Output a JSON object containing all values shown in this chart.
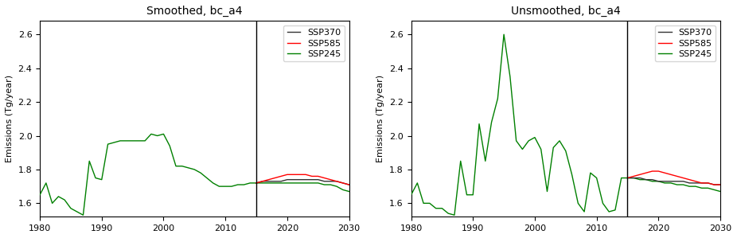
{
  "title_smoothed": "Smoothed, bc_a4",
  "title_unsmoothed": "Unsmoothed, bc_a4",
  "ylabel": "Emissions (Tg/year)",
  "xlim": [
    1980,
    2030
  ],
  "ylim": [
    1.52,
    2.68
  ],
  "yticks": [
    1.6,
    1.8,
    2.0,
    2.2,
    2.4,
    2.6
  ],
  "vline_x": 2015,
  "xticks": [
    1980,
    1990,
    2000,
    2010,
    2020,
    2030
  ],
  "legend_labels": [
    "SSP370",
    "SSP585",
    "SSP245"
  ],
  "colors": {
    "SSP370": "#333333",
    "SSP585": "#ff0000",
    "SSP245": "#008000"
  },
  "smoothed": {
    "historical_years": [
      1980,
      1981,
      1982,
      1983,
      1984,
      1985,
      1986,
      1987,
      1988,
      1989,
      1990,
      1991,
      1992,
      1993,
      1994,
      1995,
      1996,
      1997,
      1998,
      1999,
      2000,
      2001,
      2002,
      2003,
      2004,
      2005,
      2006,
      2007,
      2008,
      2009,
      2010,
      2011,
      2012,
      2013,
      2014,
      2015
    ],
    "historical_values": [
      1.65,
      1.72,
      1.6,
      1.64,
      1.62,
      1.57,
      1.55,
      1.53,
      1.85,
      1.75,
      1.74,
      1.95,
      1.96,
      1.97,
      1.97,
      1.97,
      1.97,
      1.97,
      2.01,
      2.0,
      2.01,
      1.94,
      1.82,
      1.82,
      1.81,
      1.8,
      1.78,
      1.75,
      1.72,
      1.7,
      1.7,
      1.7,
      1.71,
      1.71,
      1.72,
      1.72
    ],
    "ssp370_years": [
      2015,
      2016,
      2017,
      2018,
      2019,
      2020,
      2021,
      2022,
      2023,
      2024,
      2025,
      2026,
      2027,
      2028,
      2029,
      2030
    ],
    "ssp370_values": [
      1.72,
      1.73,
      1.73,
      1.73,
      1.73,
      1.74,
      1.74,
      1.74,
      1.74,
      1.74,
      1.74,
      1.73,
      1.73,
      1.73,
      1.72,
      1.71
    ],
    "ssp585_years": [
      2015,
      2016,
      2017,
      2018,
      2019,
      2020,
      2021,
      2022,
      2023,
      2024,
      2025,
      2026,
      2027,
      2028,
      2029,
      2030
    ],
    "ssp585_values": [
      1.72,
      1.73,
      1.74,
      1.75,
      1.76,
      1.77,
      1.77,
      1.77,
      1.77,
      1.76,
      1.76,
      1.75,
      1.74,
      1.73,
      1.72,
      1.71
    ],
    "ssp245_years": [
      2015,
      2016,
      2017,
      2018,
      2019,
      2020,
      2021,
      2022,
      2023,
      2024,
      2025,
      2026,
      2027,
      2028,
      2029,
      2030
    ],
    "ssp245_values": [
      1.72,
      1.72,
      1.72,
      1.72,
      1.72,
      1.72,
      1.72,
      1.72,
      1.72,
      1.72,
      1.72,
      1.71,
      1.71,
      1.7,
      1.68,
      1.67
    ]
  },
  "unsmoothed": {
    "historical_years": [
      1980,
      1981,
      1982,
      1983,
      1984,
      1985,
      1986,
      1987,
      1988,
      1989,
      1990,
      1991,
      1992,
      1993,
      1994,
      1995,
      1996,
      1997,
      1998,
      1999,
      2000,
      2001,
      2002,
      2003,
      2004,
      2005,
      2006,
      2007,
      2008,
      2009,
      2010,
      2011,
      2012,
      2013,
      2014,
      2015
    ],
    "historical_values": [
      1.65,
      1.72,
      1.6,
      1.6,
      1.57,
      1.57,
      1.54,
      1.53,
      1.85,
      1.65,
      1.65,
      2.07,
      1.85,
      2.08,
      2.22,
      2.6,
      2.35,
      1.97,
      1.92,
      1.97,
      1.99,
      1.92,
      1.67,
      1.93,
      1.97,
      1.91,
      1.77,
      1.6,
      1.55,
      1.78,
      1.75,
      1.6,
      1.55,
      1.56,
      1.75,
      1.75
    ],
    "ssp370_years": [
      2015,
      2016,
      2017,
      2018,
      2019,
      2020,
      2021,
      2022,
      2023,
      2024,
      2025,
      2026,
      2027,
      2028,
      2029,
      2030
    ],
    "ssp370_values": [
      1.75,
      1.75,
      1.75,
      1.74,
      1.74,
      1.73,
      1.73,
      1.73,
      1.73,
      1.73,
      1.72,
      1.72,
      1.72,
      1.72,
      1.71,
      1.71
    ],
    "ssp585_years": [
      2015,
      2016,
      2017,
      2018,
      2019,
      2020,
      2021,
      2022,
      2023,
      2024,
      2025,
      2026,
      2027,
      2028,
      2029,
      2030
    ],
    "ssp585_values": [
      1.75,
      1.76,
      1.77,
      1.78,
      1.79,
      1.79,
      1.78,
      1.77,
      1.76,
      1.75,
      1.74,
      1.73,
      1.72,
      1.72,
      1.71,
      1.71
    ],
    "ssp245_years": [
      2015,
      2016,
      2017,
      2018,
      2019,
      2020,
      2021,
      2022,
      2023,
      2024,
      2025,
      2026,
      2027,
      2028,
      2029,
      2030
    ],
    "ssp245_values": [
      1.75,
      1.75,
      1.74,
      1.74,
      1.73,
      1.73,
      1.72,
      1.72,
      1.71,
      1.71,
      1.7,
      1.7,
      1.69,
      1.69,
      1.68,
      1.67
    ]
  }
}
